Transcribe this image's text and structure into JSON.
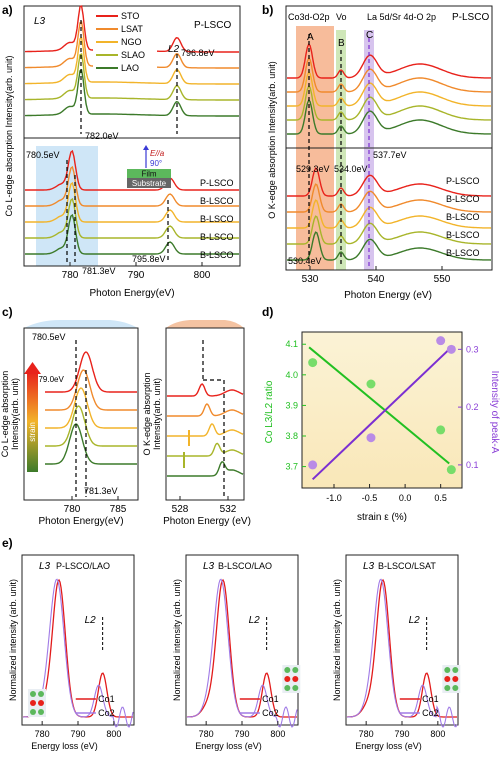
{
  "colors": {
    "STO": "#e8221b",
    "LSAT": "#f08a2c",
    "NGO": "#f2b42a",
    "SLAO": "#a8b52a",
    "LAO": "#3c7a2a",
    "blue_band": "#cfe6f7",
    "orange_band": "#f4a57a",
    "green_band": "#cfe7b8",
    "purple_band": "#d7c4ee",
    "green_line": "#22c022",
    "purple_line": "#7b2fd2",
    "green_marker": "#77dd6a",
    "purple_marker": "#b98be6",
    "co1_red": "#e21b1b",
    "co2_purple": "#a07be6"
  },
  "panel_a": {
    "letter": "a)",
    "ylabel": "Co L-edge absorption Intensity(arb. unit)",
    "xlabel": "Photon Energy(eV)",
    "xticks": [
      "780",
      "790",
      "800"
    ],
    "legend": [
      "STO",
      "LSAT",
      "NGO",
      "SLAO",
      "LAO"
    ],
    "top_label": "P-LSCO",
    "bottom_labels": [
      "P-LSCO",
      "B-LSCO",
      "B-LSCO",
      "B-LSCO",
      "B-LSCO"
    ],
    "annotations": {
      "L3": "L3",
      "L2": "L2",
      "l2_value": "796.8eV",
      "l3_value": "782.0eV",
      "bottom_left": "780.5eV",
      "bottom_l3": "781.3eV",
      "bottom_l2": "795.8eV",
      "e_label": "E//a",
      "angle": "90°",
      "film": "Film",
      "substrate": "Substrate"
    }
  },
  "panel_b": {
    "letter": "b)",
    "ylabel": "O K-edge absorption Intensity(arb. unit)",
    "xlabel": "Photon Energy (eV)",
    "xticks": [
      "530",
      "540",
      "550"
    ],
    "top_label": "P-LSCO",
    "bottom_labels": [
      "P-LSCO",
      "B-LSCO",
      "B-LSCO",
      "B-LSCO",
      "B-LSCO"
    ],
    "band_labels": {
      "co": "Co3d-O2p",
      "vo": "Vo",
      "la": "La 5d/Sr 4d-O 2p"
    },
    "peaks": {
      "A": "A",
      "B": "B",
      "C": "C"
    },
    "annotations": {
      "v529": "529.3eV",
      "v534": "534.0eV",
      "v537": "537.7eV",
      "v530": "530.4eV"
    }
  },
  "panel_c": {
    "letter": "c)",
    "left_ylabel_1": "Co L-edge absorption",
    "left_ylabel_2": "Intensity(arb. unit)",
    "right_ylabel_1": "O K-edge absorption",
    "right_ylabel_2": "Intensity(arb. unit)",
    "left_xlabel": "Photon Energy(eV)",
    "right_xlabel": "Photon Energy (eV)",
    "left_xticks": [
      "780",
      "785"
    ],
    "right_xticks": [
      "528",
      "532"
    ],
    "annotations": {
      "a780": "780.5eV",
      "a779": "779.0eV",
      "a781": "781.3eV",
      "strain": "strain"
    }
  },
  "panel_d": {
    "letter": "d)",
    "ylabel_left": "Co L3/L2 ratio",
    "ylabel_right": "Intensity of peak-A",
    "xlabel": "strain ε (%)",
    "xticks": [
      "-1.0",
      "-0.5",
      "0.0",
      "0.5"
    ],
    "yticks_left": [
      "3.7",
      "3.8",
      "3.9",
      "4.0",
      "4.1"
    ],
    "yticks_right": [
      "0.1",
      "0.2",
      "0.3"
    ]
  },
  "panel_e": {
    "letter": "e)",
    "ylabel": "Normalized intensity (arb. unit)",
    "xlabel": "Energy loss (eV)",
    "xticks": [
      "780",
      "790",
      "800"
    ],
    "titles": [
      "P-LSCO/LAO",
      "B-LSCO/LAO",
      "B-LSCO/LSAT"
    ],
    "L3": "L3",
    "L2": "L2",
    "legend": [
      "Co1",
      "Co2"
    ]
  },
  "chart_data": [
    {
      "type": "line",
      "panel": "a",
      "title": "",
      "xlabel": "Photon Energy(eV)",
      "ylabel": "Co L-edge absorption Intensity(arb. unit)",
      "xlim": [
        775,
        806
      ],
      "series": [
        {
          "name": "STO",
          "values": []
        },
        {
          "name": "LSAT",
          "values": []
        },
        {
          "name": "NGO",
          "values": []
        },
        {
          "name": "SLAO",
          "values": []
        },
        {
          "name": "LAO",
          "values": []
        }
      ],
      "peaks": {
        "P-LSCO L3": 782.0,
        "P-LSCO L2": 796.8,
        "B-LSCO L3": 781.3,
        "B-LSCO shoulder": 780.5,
        "B-LSCO L2": 795.8
      }
    },
    {
      "type": "line",
      "panel": "b",
      "xlabel": "Photon Energy (eV)",
      "ylabel": "O K-edge absorption Intensity(arb. unit)",
      "xlim": [
        525,
        556
      ],
      "peaks": {
        "A": 529.3,
        "B": 534.0,
        "C": 537.7,
        "A (B-LSCO)": 530.4
      }
    },
    {
      "type": "scatter",
      "panel": "d",
      "xlabel": "strain ε (%)",
      "ylabel": "Co L3/L2 ratio",
      "y2label": "Intensity of peak-A",
      "xlim": [
        -1.45,
        0.8
      ],
      "ylim": [
        3.63,
        4.14
      ],
      "y2lim": [
        0.06,
        0.33
      ],
      "series": [
        {
          "name": "Co L3/L2 ratio",
          "axis": "left",
          "x": [
            -1.3,
            -0.48,
            0.5,
            0.65
          ],
          "y": [
            4.04,
            3.97,
            3.82,
            3.69
          ],
          "fit": [
            [
              -1.35,
              4.09
            ],
            [
              0.62,
              3.71
            ]
          ]
        },
        {
          "name": "Intensity of peak-A",
          "axis": "right",
          "x": [
            -1.3,
            -0.48,
            0.5,
            0.65
          ],
          "y": [
            0.1,
            0.147,
            0.315,
            0.3
          ],
          "fit": [
            [
              -1.3,
              0.075
            ],
            [
              0.62,
              0.3
            ]
          ]
        }
      ]
    }
  ]
}
